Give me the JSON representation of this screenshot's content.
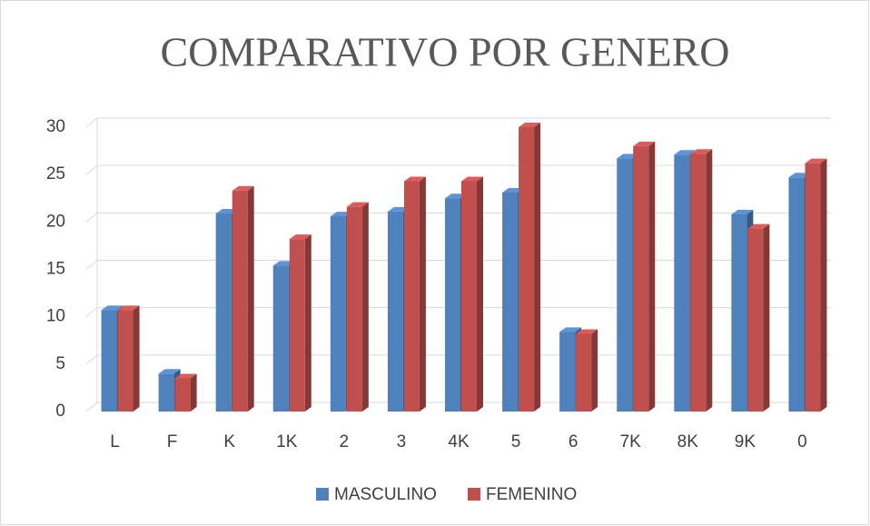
{
  "chart_data": {
    "type": "bar3d",
    "title": "COMPARATIVO POR GENERO",
    "categories": [
      "L",
      "F",
      "K",
      "1K",
      "2",
      "3",
      "4K",
      "5",
      "6",
      "7K",
      "8K",
      "9K",
      "0"
    ],
    "series": [
      {
        "name": "MASCULINO",
        "color": "#4f81bd",
        "values": [
          10.7,
          4.0,
          20.9,
          15.4,
          20.6,
          21.1,
          22.5,
          23.1,
          8.4,
          26.7,
          27.1,
          20.8,
          24.7
        ]
      },
      {
        "name": "FEMENINO",
        "color": "#c0504d",
        "values": [
          10.7,
          3.5,
          23.3,
          18.2,
          21.6,
          24.3,
          24.3,
          30.0,
          8.2,
          28.0,
          27.2,
          19.3,
          26.2
        ]
      }
    ],
    "ylim": [
      0,
      30
    ],
    "yticks": [
      0,
      5,
      10,
      15,
      20,
      25,
      30
    ],
    "grid": true,
    "legend": "bottom"
  }
}
